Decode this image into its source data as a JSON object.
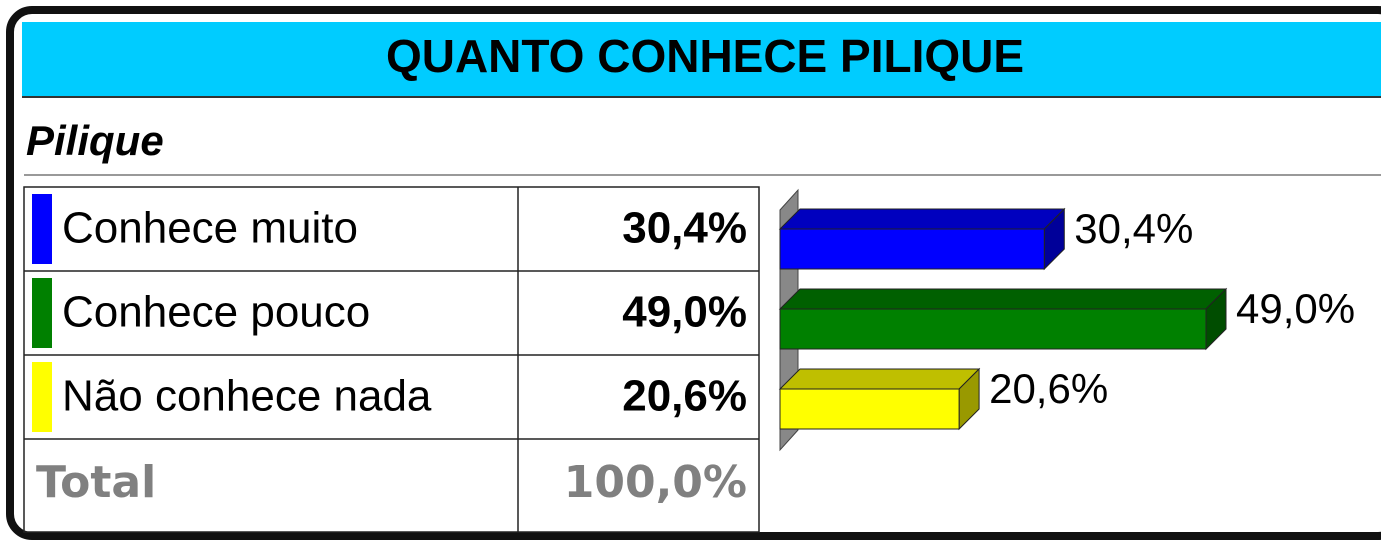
{
  "chart_data": {
    "type": "bar",
    "title": "QUANTO CONHECE PILIQUE",
    "subtitle": "Pilique",
    "categories": [
      "Conhece muito",
      "Conhece pouco",
      "Não conhece nada"
    ],
    "values": [
      30.4,
      49.0,
      20.6
    ],
    "value_labels": [
      "30,4%",
      "49,0%",
      "20,6%"
    ],
    "colors": [
      "#0000ff",
      "#008000",
      "#ffff00"
    ],
    "total_label": "Total",
    "total": "100,0%"
  }
}
